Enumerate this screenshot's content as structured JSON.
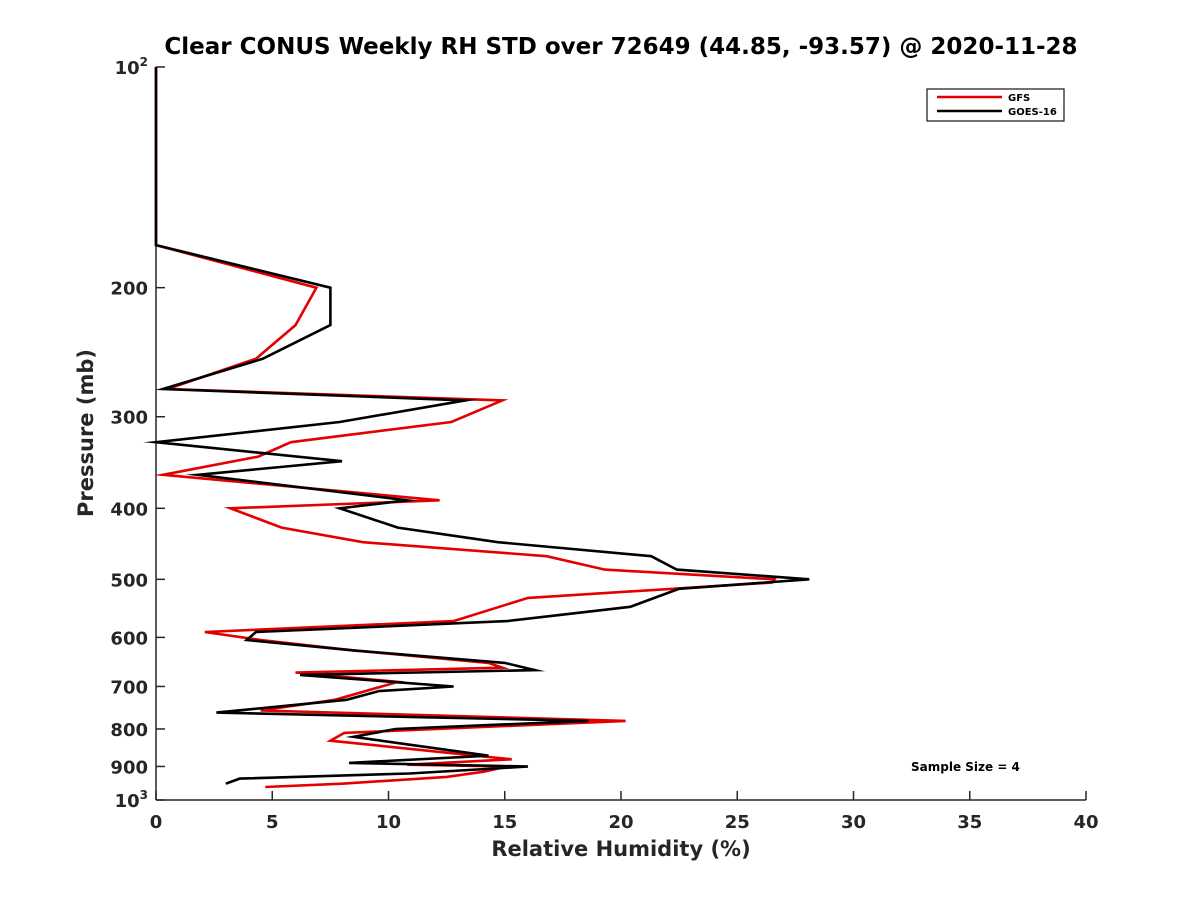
{
  "chart_data": {
    "type": "line",
    "title": "Clear CONUS Weekly RH STD over 72649 (44.85, -93.57) @ 2020-11-28",
    "xlabel": "Relative Humidity (%)",
    "ylabel": "Pressure (mb)",
    "xlim": [
      0,
      40
    ],
    "ylim": [
      100,
      1000
    ],
    "y_scale": "log",
    "y_reversed": true,
    "x_ticks": [
      "0",
      "5",
      "10",
      "15",
      "20",
      "25",
      "30",
      "35",
      "40"
    ],
    "y_ticks": [
      {
        "value": 100,
        "base": "10",
        "exp": "2"
      },
      {
        "value": 200,
        "label": "200"
      },
      {
        "value": 300,
        "label": "300"
      },
      {
        "value": 400,
        "label": "400"
      },
      {
        "value": 500,
        "label": "500"
      },
      {
        "value": 600,
        "label": "600"
      },
      {
        "value": 700,
        "label": "700"
      },
      {
        "value": 800,
        "label": "800"
      },
      {
        "value": 900,
        "label": "900"
      },
      {
        "value": 1000,
        "base": "10",
        "exp": "3"
      }
    ],
    "grid": false,
    "legend_position": "top-right",
    "annotation": "Sample Size = 4",
    "series": [
      {
        "name": "GFS",
        "color": "#e50000",
        "points": [
          [
            0,
            100
          ],
          [
            0,
            150
          ],
          [
            0,
            175
          ],
          [
            6.9,
            200
          ],
          [
            6.0,
            225
          ],
          [
            4.3,
            250
          ],
          [
            0.5,
            275
          ],
          [
            14.9,
            285
          ],
          [
            12.7,
            305
          ],
          [
            5.8,
            325
          ],
          [
            4.4,
            340
          ],
          [
            0.3,
            360
          ],
          [
            12.2,
            390
          ],
          [
            3.2,
            400
          ],
          [
            5.4,
            425
          ],
          [
            8.9,
            445
          ],
          [
            16.8,
            465
          ],
          [
            19.3,
            485
          ],
          [
            26.6,
            500
          ],
          [
            26.5,
            505
          ],
          [
            16.0,
            530
          ],
          [
            12.8,
            570
          ],
          [
            2.1,
            590
          ],
          [
            4.5,
            605
          ],
          [
            8.5,
            625
          ],
          [
            14.3,
            650
          ],
          [
            14.9,
            660
          ],
          [
            6.0,
            670
          ],
          [
            10.4,
            690
          ],
          [
            7.7,
            730
          ],
          [
            4.5,
            755
          ],
          [
            20.2,
            780
          ],
          [
            8.1,
            810
          ],
          [
            7.5,
            830
          ],
          [
            15.3,
            880
          ],
          [
            10.8,
            895
          ],
          [
            15.1,
            900
          ],
          [
            14.1,
            915
          ],
          [
            12.5,
            930
          ],
          [
            8.0,
            950
          ],
          [
            4.7,
            960
          ]
        ]
      },
      {
        "name": "GOES-16",
        "color": "#000000",
        "points": [
          [
            0,
            100
          ],
          [
            0,
            150
          ],
          [
            0,
            175
          ],
          [
            7.5,
            200
          ],
          [
            7.5,
            225
          ],
          [
            4.6,
            250
          ],
          [
            0.3,
            275
          ],
          [
            13.3,
            285
          ],
          [
            7.9,
            305
          ],
          [
            0,
            325
          ],
          [
            8.0,
            345
          ],
          [
            1.8,
            360
          ],
          [
            10.8,
            390
          ],
          [
            7.9,
            400
          ],
          [
            10.4,
            425
          ],
          [
            14.7,
            445
          ],
          [
            21.3,
            465
          ],
          [
            22.4,
            485
          ],
          [
            28.1,
            500
          ],
          [
            22.5,
            515
          ],
          [
            20.4,
            545
          ],
          [
            15.1,
            570
          ],
          [
            4.3,
            590
          ],
          [
            3.9,
            605
          ],
          [
            8.5,
            625
          ],
          [
            15.0,
            650
          ],
          [
            16.3,
            665
          ],
          [
            6.2,
            675
          ],
          [
            12.8,
            700
          ],
          [
            9.6,
            710
          ],
          [
            8.2,
            730
          ],
          [
            2.6,
            760
          ],
          [
            18.6,
            780
          ],
          [
            10.3,
            800
          ],
          [
            8.5,
            820
          ],
          [
            14.3,
            870
          ],
          [
            8.3,
            890
          ],
          [
            16.0,
            900
          ],
          [
            10.9,
            920
          ],
          [
            3.6,
            935
          ],
          [
            3.0,
            950
          ]
        ]
      }
    ]
  }
}
